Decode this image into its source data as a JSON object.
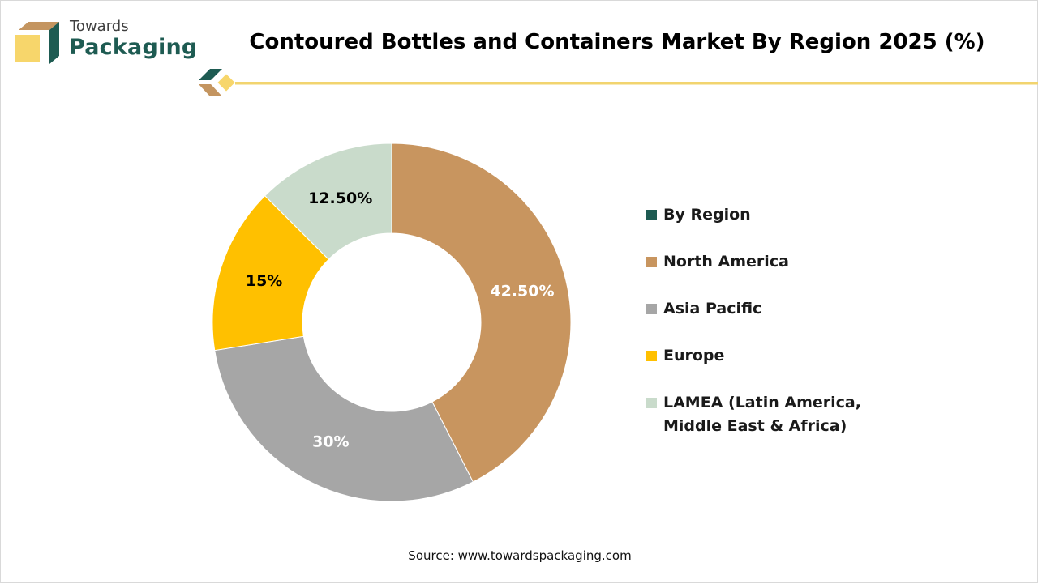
{
  "brand": {
    "line1": "Towards",
    "line2": "Packaging",
    "colors": {
      "dark": "#1e5b52",
      "tan": "#c49560",
      "yellow": "#f7d66b",
      "gold_line": "#f2d46f"
    }
  },
  "chart_data": {
    "type": "pie",
    "donut": true,
    "title": "Contoured Bottles and Containers Market By Region 2025 (%)",
    "legend_title": "By Region",
    "legend_title_color": "#1e5b52",
    "legend_position": "right",
    "slices": [
      {
        "name": "North America",
        "value": 42.5,
        "label": "42.50%",
        "color": "#c8955f",
        "label_color": "#ffffff"
      },
      {
        "name": "Asia Pacific",
        "value": 30,
        "label": "30%",
        "color": "#a6a6a6",
        "label_color": "#ffffff"
      },
      {
        "name": "Europe",
        "value": 15,
        "label": "15%",
        "color": "#ffc000",
        "label_color": "#000000"
      },
      {
        "name": "LAMEA (Latin America, Middle East & Africa)",
        "value": 12.5,
        "label": "12.50%",
        "color": "#c9dbcb",
        "label_color": "#000000"
      }
    ]
  },
  "legend_lines": {
    "lamea_line1": "LAMEA (Latin America,",
    "lamea_line2": "Middle East & Africa)"
  },
  "footer": {
    "source": "Source: www.towardspackaging.com"
  }
}
